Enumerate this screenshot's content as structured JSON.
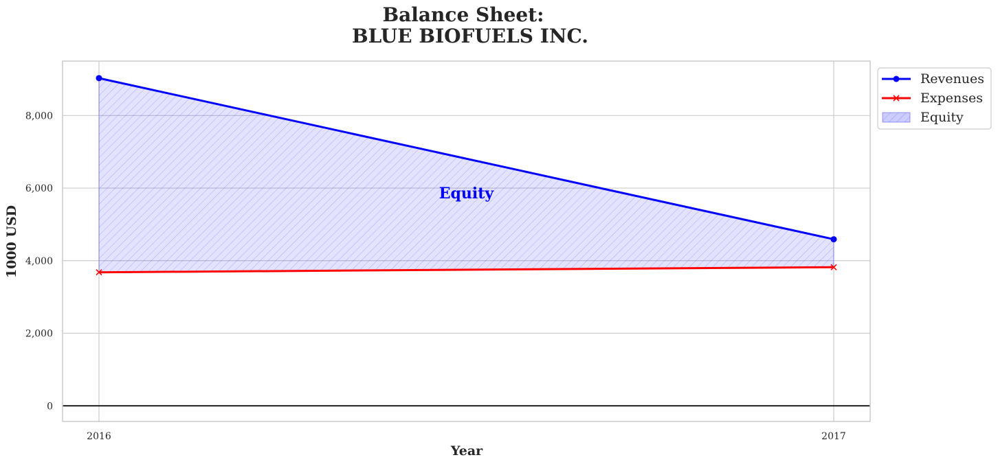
{
  "chart_data": {
    "type": "line",
    "title": "Balance Sheet:",
    "subtitle": "BLUE BIOFUELS INC.",
    "xlabel": "Year",
    "ylabel": "1000 USD",
    "x": [
      "2016",
      "2017"
    ],
    "ylim": [
      -430,
      9500
    ],
    "yticks": [
      0,
      2000,
      4000,
      6000,
      8000
    ],
    "ytick_labels": [
      "0",
      "2,000",
      "4,000",
      "6,000",
      "8,000"
    ],
    "grid": true,
    "legend_position": "outside top-right",
    "series": [
      {
        "name": "Revenues",
        "values": [
          9030,
          4590
        ],
        "color": "#0000ff",
        "marker": "circle"
      },
      {
        "name": "Expenses",
        "values": [
          3680,
          3820
        ],
        "color": "#ff0000",
        "marker": "x"
      }
    ],
    "fill": {
      "name": "Equity",
      "between": [
        "Revenues",
        "Expenses"
      ],
      "color": "#0000ff",
      "hatch": "////"
    },
    "annotations": [
      {
        "text": "Equity",
        "color": "#0000ff"
      }
    ],
    "zero_line": {
      "y": 0,
      "color": "#000000"
    }
  }
}
